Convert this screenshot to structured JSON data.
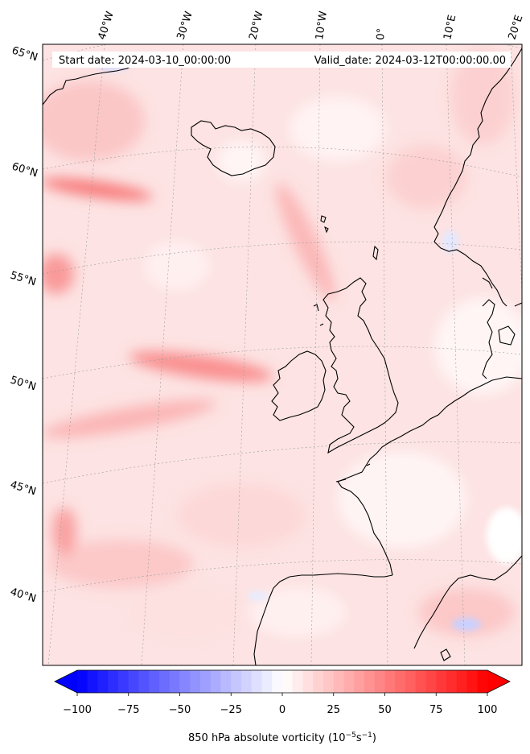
{
  "header": {
    "start_label": "Start date: 2024-03-10_00:00:00",
    "valid_label": "Valid_date: 2024-03-12T00:00:00.00"
  },
  "map": {
    "lon_labels": [
      "40°W",
      "30°W",
      "20°W",
      "10°W",
      "0°",
      "10°E",
      "20°E"
    ],
    "lat_labels": [
      "65°N",
      "60°N",
      "55°N",
      "50°N",
      "45°N",
      "40°N"
    ],
    "field": "850 hPa absolute vorticity",
    "colors": {
      "land_outline": "#000000",
      "positive": "#ff0000",
      "negative": "#0000ff",
      "neutral": "#ffffff"
    }
  },
  "colorbar": {
    "min": -100,
    "max": 100,
    "ticks": [
      "−100",
      "−75",
      "−50",
      "−25",
      "0",
      "25",
      "50",
      "75",
      "100"
    ],
    "tick_values": [
      -100,
      -75,
      -50,
      -25,
      0,
      25,
      50,
      75,
      100
    ],
    "label_prefix": "850 hPa absolute vorticity (10",
    "label_exp1": "−5",
    "label_mid": "s",
    "label_exp2": "−1",
    "label_suffix": ")"
  }
}
